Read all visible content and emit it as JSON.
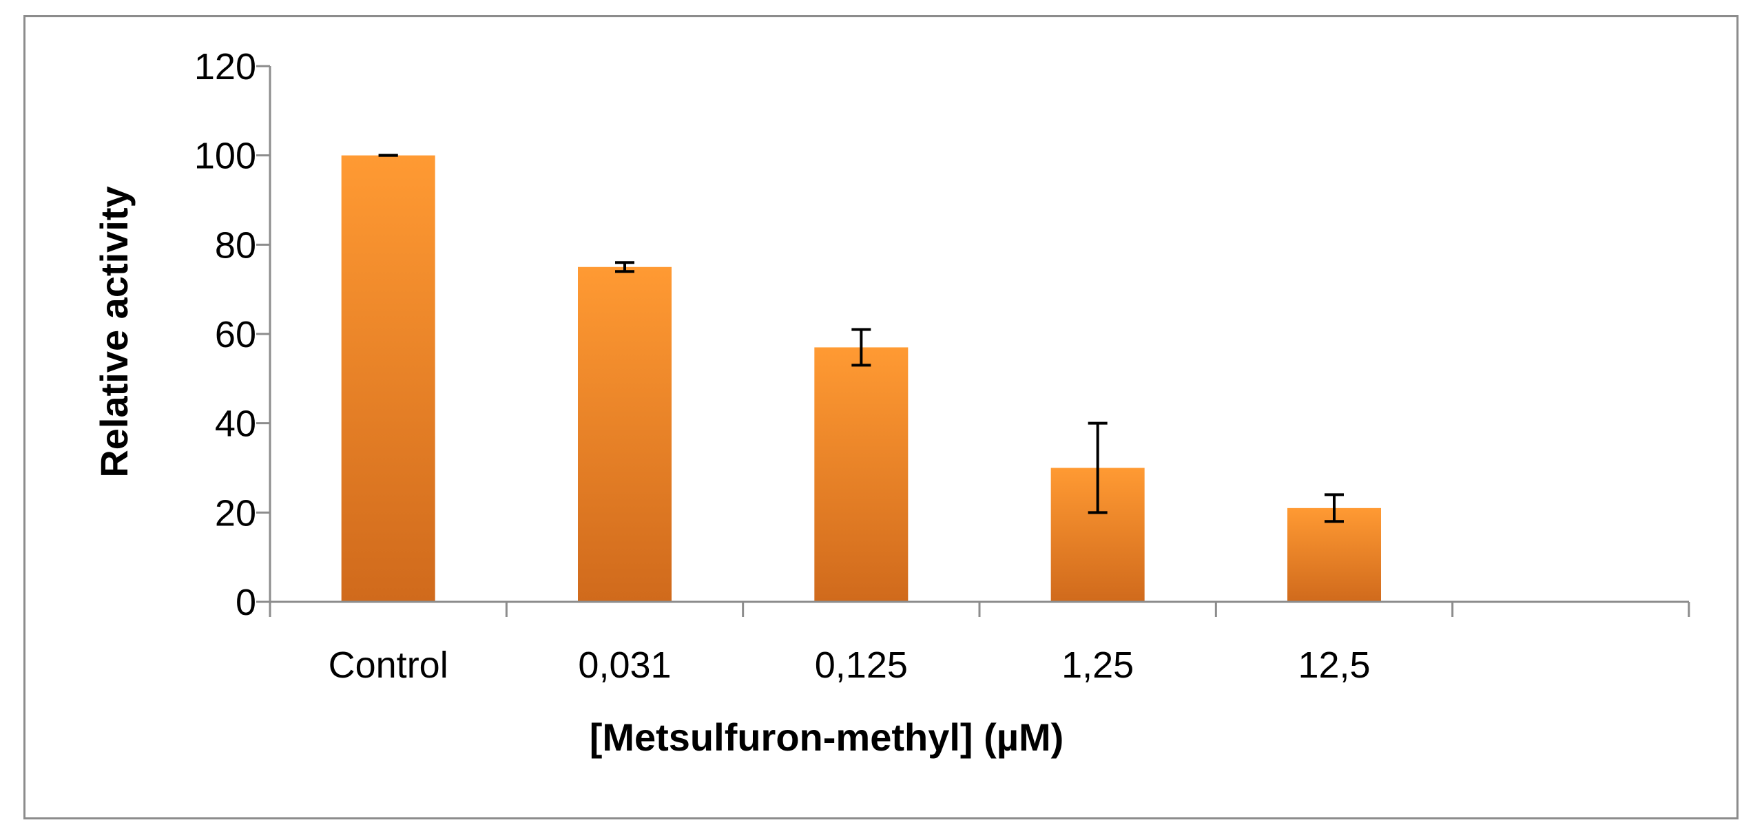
{
  "chart_data": {
    "type": "bar",
    "categories": [
      "Control",
      "0,031",
      "0,125",
      "1,25",
      "12,5"
    ],
    "values": [
      100,
      75,
      57,
      30,
      21
    ],
    "error_low": [
      100,
      74,
      53,
      20,
      18
    ],
    "error_high": [
      100,
      76,
      61,
      40,
      24
    ],
    "xlabel": "[Metsulfuron-methyl] (µM)",
    "ylabel": "Relative activity",
    "ylim": [
      0,
      120
    ],
    "yticks": [
      0,
      20,
      40,
      60,
      80,
      100,
      120
    ],
    "ytick_labels": [
      "0",
      "20",
      "40",
      "60",
      "80",
      "100",
      "120"
    ],
    "grid": false,
    "legend": "none",
    "colors": {
      "bar_top": "#ff9a33",
      "bar_bottom": "#d06a1c",
      "axis": "#8c8c8c",
      "error_bar": "#000000"
    }
  }
}
